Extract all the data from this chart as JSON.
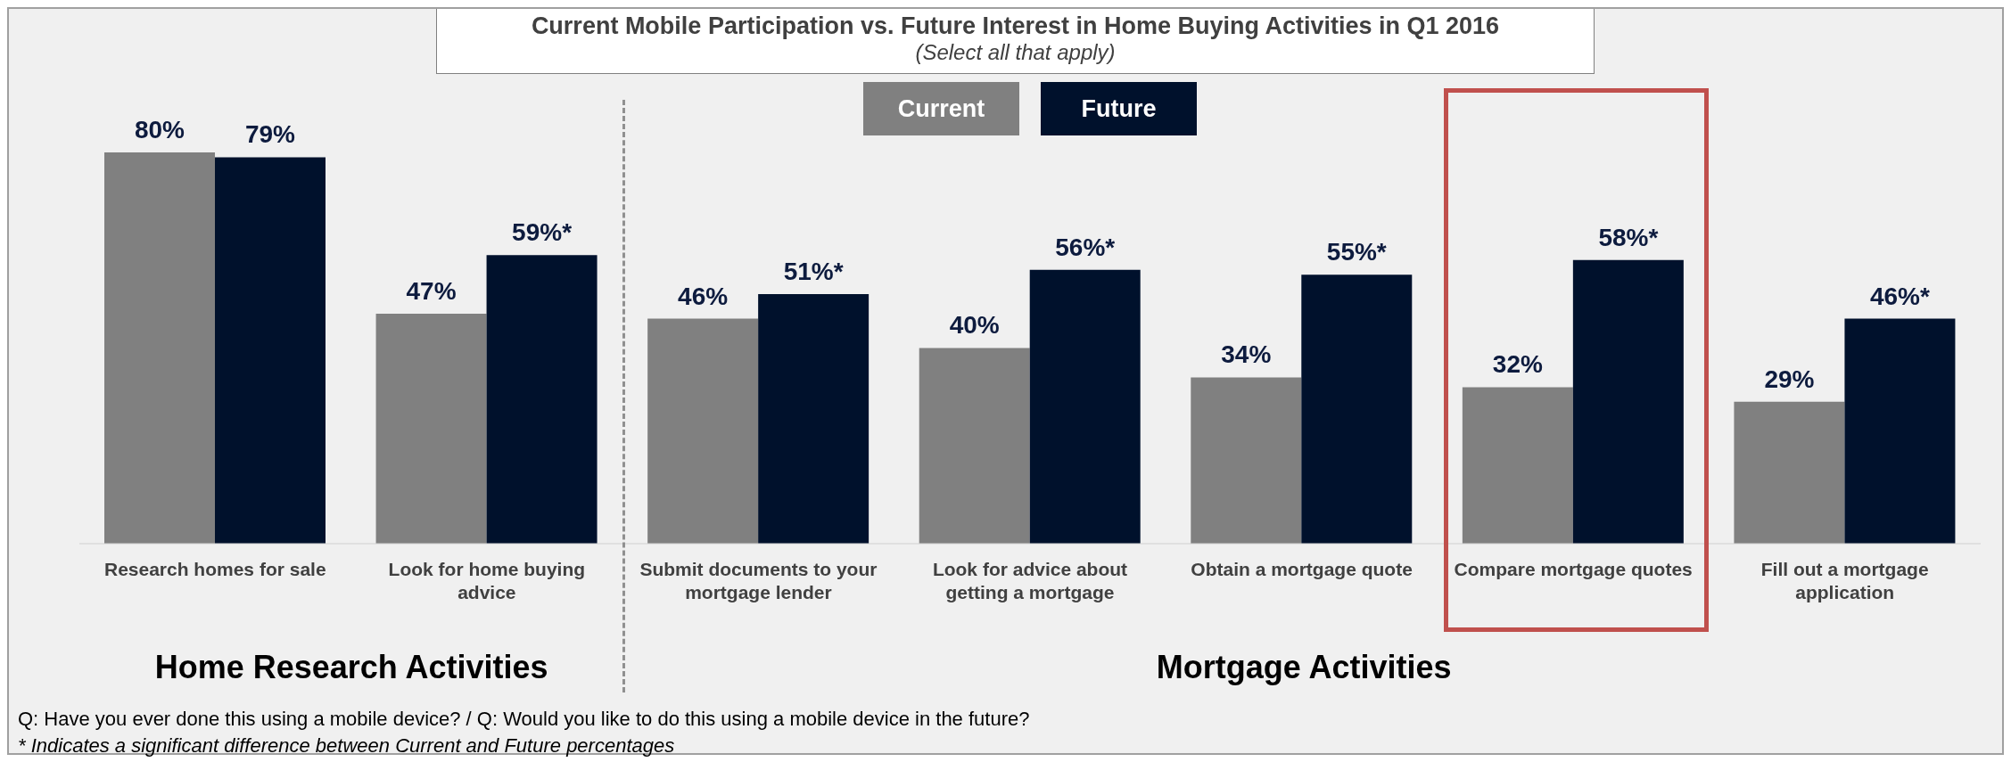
{
  "chart_data": {
    "type": "bar",
    "title": "Current Mobile Participation vs. Future Interest in Home Buying Activities in Q1 2016",
    "subtitle": "(Select all that apply)",
    "categories": [
      "Research homes for sale",
      "Look for home buying advice",
      "Submit documents to your mortgage lender",
      "Look for advice about getting a mortgage",
      "Obtain a mortgage quote",
      "Compare mortgage quotes",
      "Fill out a mortgage application"
    ],
    "series": [
      {
        "name": "Current",
        "color": "#808080",
        "values": [
          80,
          47,
          46,
          40,
          34,
          32,
          29
        ],
        "value_labels": [
          "80%",
          "47%",
          "46%",
          "40%",
          "34%",
          "32%",
          "29%"
        ]
      },
      {
        "name": "Future",
        "color": "#00112c",
        "values": [
          79,
          59,
          51,
          56,
          55,
          58,
          46
        ],
        "value_labels": [
          "79%",
          "59%*",
          "51%*",
          "56%*",
          "55%*",
          "58%*",
          "46%*"
        ]
      }
    ],
    "legend": "top",
    "annotations": [
      "Home Research Activities",
      "Mortgage Activities",
      "Q: Have you ever done this using a mobile device? / Q: Would you like to do this using a mobile device in the future?",
      "* Indicates a significant difference between Current and Future percentages"
    ]
  }
}
